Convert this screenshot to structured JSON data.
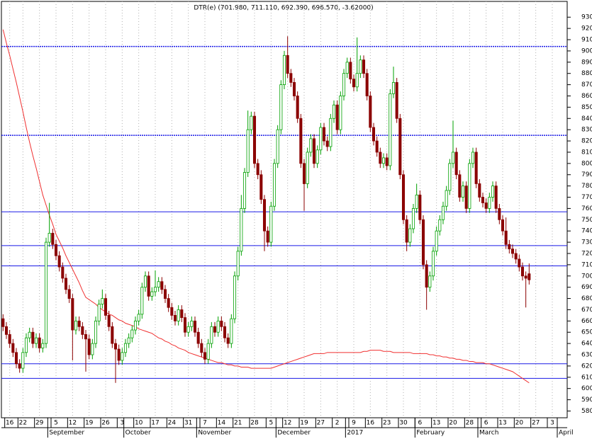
{
  "chart_data": {
    "type": "candlestick",
    "title": "DTR(e) (701.980, 711.110, 692.390, 696.570, -3.62000)",
    "categories": [
      null,
      null,
      "16",
      null,
      null,
      null,
      "22",
      null,
      null,
      null,
      null,
      "29",
      null,
      null,
      null,
      null,
      "5",
      null,
      null,
      null,
      null,
      "12",
      null,
      null,
      null,
      null,
      "19",
      null,
      null,
      null,
      null,
      "26",
      null,
      null,
      null,
      null,
      "3",
      null,
      null,
      null,
      null,
      "10",
      null,
      null,
      null,
      null,
      "17",
      null,
      null,
      null,
      null,
      "24",
      null,
      null,
      null,
      null,
      "31",
      null,
      null,
      null,
      null,
      "7",
      null,
      null,
      null,
      null,
      "14",
      null,
      null,
      null,
      null,
      "21",
      null,
      null,
      null,
      null,
      "28",
      null,
      null,
      null,
      null,
      "5",
      null,
      null,
      null,
      null,
      "12",
      null,
      null,
      null,
      null,
      "19",
      null,
      null,
      null,
      null,
      "27",
      null,
      null,
      null,
      null,
      "2",
      null,
      null,
      null,
      null,
      "9",
      null,
      null,
      null,
      null,
      "16",
      null,
      null,
      null,
      null,
      "23",
      null,
      null,
      null,
      null,
      "30",
      null,
      null,
      null,
      null,
      "6",
      null,
      null,
      null,
      null,
      "13",
      null,
      null,
      null,
      null,
      "20",
      null,
      null,
      null,
      null,
      "28",
      null,
      null,
      null,
      null,
      "6",
      null,
      null,
      null,
      null,
      "13",
      null,
      null,
      null,
      null,
      "20",
      null,
      null,
      null,
      null,
      "27",
      null,
      null,
      null,
      null,
      "3",
      null,
      null,
      null,
      null
    ],
    "months": [
      null,
      null,
      null,
      null,
      null,
      null,
      null,
      null,
      null,
      null,
      null,
      null,
      null,
      null,
      "September",
      null,
      null,
      null,
      null,
      null,
      null,
      null,
      null,
      null,
      null,
      null,
      null,
      null,
      null,
      null,
      null,
      null,
      null,
      null,
      null,
      null,
      null,
      "October",
      null,
      null,
      null,
      null,
      null,
      null,
      null,
      null,
      null,
      null,
      null,
      null,
      null,
      null,
      null,
      null,
      null,
      null,
      null,
      null,
      null,
      "November",
      null,
      null,
      null,
      null,
      null,
      null,
      null,
      null,
      null,
      null,
      null,
      null,
      null,
      null,
      null,
      null,
      null,
      null,
      null,
      null,
      null,
      null,
      null,
      "December",
      null,
      null,
      null,
      null,
      null,
      null,
      null,
      null,
      null,
      null,
      null,
      null,
      null,
      null,
      null,
      null,
      null,
      null,
      null,
      null,
      "2017",
      null,
      null,
      null,
      null,
      null,
      null,
      null,
      null,
      null,
      null,
      null,
      null,
      null,
      null,
      null,
      null,
      null,
      null,
      null,
      null,
      "February",
      null,
      null,
      null,
      null,
      null,
      null,
      null,
      null,
      null,
      null,
      null,
      null,
      null,
      null,
      null,
      null,
      null,
      null,
      "March",
      null,
      null,
      null,
      null,
      null,
      null,
      null,
      null,
      null,
      null,
      null,
      null,
      null,
      null,
      null,
      null,
      null,
      null,
      null,
      null,
      null,
      null,
      null,
      "April",
      null,
      null
    ],
    "open": [
      662,
      655,
      648,
      640,
      632,
      622,
      618,
      632,
      645,
      650,
      640,
      645,
      636,
      640,
      730,
      738,
      728,
      718,
      708,
      698,
      688,
      680,
      652,
      660,
      655,
      648,
      644,
      630,
      640,
      660,
      675,
      680,
      665,
      655,
      640,
      635,
      625,
      632,
      640,
      645,
      652,
      660,
      666,
      690,
      700,
      682,
      686,
      690,
      695,
      688,
      680,
      672,
      665,
      660,
      670,
      663,
      650,
      655,
      660,
      650,
      640,
      632,
      626,
      640,
      655,
      650,
      660,
      655,
      645,
      640,
      662,
      700,
      722,
      760,
      792,
      830,
      842,
      800,
      790,
      768,
      740,
      730,
      762,
      800,
      830,
      870,
      896,
      880,
      872,
      860,
      840,
      800,
      782,
      810,
      822,
      800,
      812,
      832,
      820,
      815,
      840,
      852,
      830,
      860,
      880,
      890,
      875,
      868,
      880,
      892,
      880,
      860,
      832,
      820,
      810,
      800,
      805,
      798,
      862,
      872,
      840,
      790,
      750,
      730,
      742,
      760,
      772,
      750,
      710,
      690,
      700,
      722,
      740,
      750,
      762,
      776,
      800,
      810,
      790,
      770,
      780,
      760,
      800,
      810,
      782,
      770,
      765,
      760,
      770,
      780,
      760,
      750,
      740,
      728,
      724,
      720,
      715,
      708,
      700,
      701.98,
      null,
      null,
      null,
      null,
      null,
      null,
      null,
      null,
      null,
      null,
      null
    ],
    "high": [
      666,
      659,
      652,
      644,
      636,
      626,
      636,
      649,
      654,
      654,
      649,
      649,
      644,
      734,
      765,
      742,
      732,
      722,
      712,
      702,
      692,
      684,
      664,
      664,
      659,
      652,
      648,
      644,
      664,
      679,
      688,
      684,
      669,
      659,
      644,
      639,
      636,
      644,
      649,
      656,
      664,
      670,
      694,
      704,
      704,
      690,
      705,
      699,
      699,
      692,
      684,
      676,
      669,
      674,
      674,
      667,
      659,
      664,
      664,
      654,
      644,
      636,
      644,
      659,
      659,
      664,
      664,
      659,
      649,
      666,
      704,
      726,
      772,
      796,
      847,
      846,
      846,
      804,
      794,
      772,
      744,
      766,
      804,
      834,
      874,
      900,
      913,
      884,
      876,
      864,
      844,
      804,
      814,
      826,
      826,
      816,
      836,
      836,
      824,
      844,
      856,
      856,
      864,
      884,
      894,
      894,
      879,
      912,
      896,
      896,
      884,
      864,
      836,
      824,
      814,
      809,
      809,
      866,
      886,
      876,
      844,
      794,
      754,
      746,
      764,
      782,
      776,
      754,
      714,
      704,
      726,
      744,
      754,
      766,
      780,
      804,
      838,
      814,
      794,
      784,
      784,
      804,
      814,
      814,
      786,
      774,
      769,
      774,
      784,
      784,
      764,
      754,
      752,
      732,
      728,
      724,
      719,
      712,
      704,
      711.11,
      null,
      null,
      null,
      null,
      null,
      null,
      null,
      null,
      null,
      null,
      null
    ],
    "low": [
      651,
      644,
      636,
      628,
      618,
      614,
      614,
      628,
      641,
      636,
      636,
      632,
      632,
      636,
      726,
      724,
      714,
      704,
      694,
      684,
      676,
      625,
      648,
      651,
      644,
      615,
      626,
      626,
      636,
      656,
      671,
      661,
      651,
      636,
      605,
      621,
      621,
      628,
      636,
      641,
      648,
      656,
      662,
      686,
      678,
      678,
      682,
      686,
      684,
      676,
      668,
      661,
      656,
      656,
      659,
      646,
      646,
      651,
      646,
      636,
      628,
      622,
      622,
      636,
      646,
      646,
      651,
      641,
      636,
      636,
      658,
      696,
      718,
      756,
      788,
      826,
      796,
      786,
      764,
      722,
      726,
      726,
      758,
      796,
      826,
      866,
      876,
      868,
      856,
      836,
      796,
      758,
      778,
      806,
      796,
      796,
      808,
      816,
      811,
      811,
      836,
      826,
      826,
      856,
      876,
      871,
      864,
      864,
      876,
      876,
      856,
      828,
      816,
      806,
      796,
      796,
      794,
      794,
      858,
      836,
      786,
      746,
      722,
      726,
      738,
      756,
      746,
      706,
      670,
      686,
      696,
      718,
      736,
      746,
      758,
      772,
      796,
      786,
      766,
      766,
      756,
      756,
      796,
      778,
      766,
      761,
      756,
      756,
      766,
      756,
      746,
      736,
      724,
      720,
      716,
      711,
      704,
      696,
      672,
      692.39,
      null,
      null,
      null,
      null,
      null,
      null,
      null,
      null,
      null,
      null,
      null
    ],
    "close": [
      655,
      648,
      640,
      632,
      622,
      618,
      632,
      645,
      650,
      640,
      645,
      636,
      640,
      730,
      738,
      728,
      718,
      708,
      698,
      688,
      680,
      652,
      660,
      655,
      648,
      644,
      630,
      640,
      660,
      675,
      680,
      665,
      655,
      640,
      635,
      625,
      632,
      640,
      645,
      652,
      660,
      666,
      690,
      700,
      682,
      686,
      690,
      695,
      688,
      680,
      672,
      665,
      660,
      670,
      663,
      650,
      655,
      660,
      650,
      640,
      632,
      626,
      640,
      655,
      650,
      660,
      655,
      645,
      640,
      662,
      700,
      722,
      760,
      792,
      830,
      842,
      800,
      790,
      768,
      740,
      730,
      762,
      800,
      830,
      870,
      896,
      880,
      872,
      860,
      840,
      800,
      782,
      810,
      822,
      800,
      812,
      832,
      820,
      815,
      840,
      852,
      830,
      860,
      880,
      890,
      875,
      868,
      880,
      892,
      880,
      860,
      832,
      820,
      810,
      800,
      805,
      798,
      862,
      872,
      840,
      790,
      750,
      730,
      742,
      760,
      772,
      750,
      710,
      690,
      700,
      722,
      740,
      750,
      762,
      776,
      800,
      810,
      790,
      770,
      780,
      760,
      800,
      810,
      782,
      770,
      765,
      760,
      770,
      780,
      760,
      750,
      740,
      728,
      724,
      720,
      715,
      708,
      700,
      698,
      696.57,
      null,
      null,
      null,
      null,
      null,
      null,
      null,
      null,
      null,
      null,
      null
    ],
    "ma": {
      "color": "#f03030",
      "values": [
        919,
        907,
        896,
        884,
        872,
        859,
        846,
        832,
        819,
        807,
        796,
        784,
        772,
        763,
        754,
        746,
        737,
        731,
        725,
        718,
        712,
        706,
        700,
        694,
        687,
        681,
        679,
        677,
        675,
        672,
        670,
        668,
        666,
        665,
        663,
        661,
        660,
        658,
        657,
        656,
        655,
        653,
        652,
        651,
        650,
        649,
        647,
        645,
        644,
        642,
        641,
        639,
        638,
        636,
        635,
        634,
        632,
        631,
        630,
        629,
        628,
        627,
        626,
        625,
        624,
        623,
        623,
        622,
        621,
        621,
        620,
        620,
        619,
        619,
        619,
        618,
        618,
        618,
        618,
        618,
        618,
        618,
        619,
        620,
        621,
        622,
        623,
        624,
        625,
        626,
        627,
        628,
        629,
        630,
        631,
        631,
        631,
        631,
        632,
        632,
        632,
        632,
        632,
        632,
        632,
        632,
        632,
        632,
        632,
        633,
        633,
        634,
        634,
        634,
        634,
        633,
        633,
        633,
        632,
        632,
        632,
        632,
        632,
        632,
        631,
        631,
        631,
        631,
        631,
        630,
        630,
        629,
        629,
        628,
        628,
        627,
        627,
        626,
        626,
        625,
        625,
        624,
        624,
        623,
        623,
        623,
        622,
        622,
        621,
        620,
        619,
        618,
        617,
        616,
        615,
        613,
        611,
        609,
        607,
        605,
        null,
        null,
        null,
        null,
        null,
        null,
        null,
        null,
        null,
        null,
        null
      ]
    },
    "levels": [
      {
        "value": 904,
        "style": "dotted"
      },
      {
        "value": 825,
        "style": "dotted"
      },
      {
        "value": 757,
        "style": "solid"
      },
      {
        "value": 727,
        "style": "solid"
      },
      {
        "value": 709,
        "style": "solid"
      },
      {
        "value": 622,
        "style": "solid"
      },
      {
        "value": 609,
        "style": "solid"
      }
    ],
    "level_color": "#1a1ae6",
    "up_color": "#00a000",
    "down_color": "#8b0000",
    "ylim": [
      574,
      944
    ],
    "yticks": [
      580,
      590,
      600,
      610,
      620,
      630,
      640,
      650,
      660,
      670,
      680,
      690,
      700,
      710,
      720,
      730,
      740,
      750,
      760,
      770,
      780,
      790,
      800,
      810,
      820,
      830,
      840,
      850,
      860,
      870,
      880,
      890,
      900,
      910,
      920,
      930
    ],
    "grid": true
  }
}
